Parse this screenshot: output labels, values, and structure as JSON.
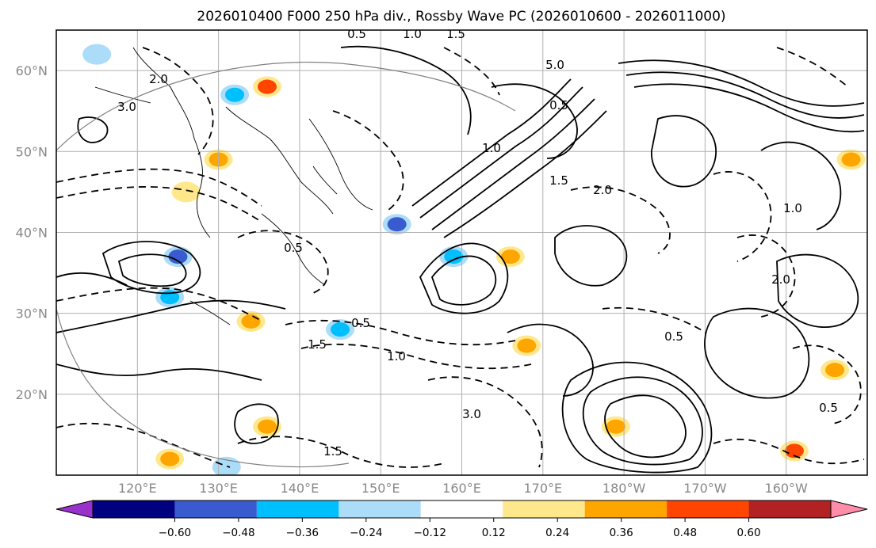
{
  "chart_data": {
    "type": "heatmap",
    "title": "2026010400 F000 250 hPa div., Rossby Wave PC (2026010600 - 2026011000)",
    "xlabel": "",
    "ylabel": "",
    "lon_range_east": [
      110,
      210
    ],
    "lat_range": [
      10,
      65
    ],
    "lat_ticks": [
      {
        "value": 20,
        "label": "20°N"
      },
      {
        "value": 30,
        "label": "30°N"
      },
      {
        "value": 40,
        "label": "40°N"
      },
      {
        "value": 50,
        "label": "50°N"
      },
      {
        "value": 60,
        "label": "60°N"
      }
    ],
    "lon_ticks": [
      {
        "value": 120,
        "label": "120°E"
      },
      {
        "value": 130,
        "label": "130°E"
      },
      {
        "value": 140,
        "label": "140°E"
      },
      {
        "value": 150,
        "label": "150°E"
      },
      {
        "value": 160,
        "label": "160°E"
      },
      {
        "value": 170,
        "label": "170°E"
      },
      {
        "value": 180,
        "label": "180°W"
      },
      {
        "value": 190,
        "label": "170°W"
      },
      {
        "value": 200,
        "label": "160°W"
      }
    ],
    "grid": true,
    "colorbar": {
      "extend": "both",
      "boundaries": [
        -0.6,
        -0.48,
        -0.36,
        -0.24,
        -0.12,
        0.12,
        0.24,
        0.36,
        0.48,
        0.6
      ],
      "tick_labels": [
        "−0.60",
        "−0.48",
        "−0.36",
        "−0.24",
        "−0.12",
        "0.12",
        "0.24",
        "0.36",
        "0.48",
        "0.60"
      ],
      "colors": [
        "#9932cc",
        "#000080",
        "#3a5bcf",
        "#00bfff",
        "#abdcf8",
        "#ffffff",
        "#ffe88c",
        "#ffa500",
        "#ff4500",
        "#b22222",
        "#ff8ca8"
      ]
    },
    "shaded_anomalies": [
      {
        "lon": 115,
        "lat": 62,
        "value": -0.24
      },
      {
        "lon": 136,
        "lat": 58,
        "value": 0.4
      },
      {
        "lon": 132,
        "lat": 57,
        "value": -0.3
      },
      {
        "lon": 130,
        "lat": 49,
        "value": 0.3
      },
      {
        "lon": 126,
        "lat": 45,
        "value": 0.2
      },
      {
        "lon": 125,
        "lat": 37,
        "value": -0.4
      },
      {
        "lon": 124,
        "lat": 32,
        "value": -0.36
      },
      {
        "lon": 152,
        "lat": 41,
        "value": -0.4
      },
      {
        "lon": 159,
        "lat": 37,
        "value": -0.36
      },
      {
        "lon": 166,
        "lat": 37,
        "value": 0.3
      },
      {
        "lon": 168,
        "lat": 26,
        "value": 0.24
      },
      {
        "lon": 145,
        "lat": 28,
        "value": -0.36
      },
      {
        "lon": 134,
        "lat": 29,
        "value": 0.24
      },
      {
        "lon": 201,
        "lat": 13,
        "value": 0.36
      },
      {
        "lon": 206,
        "lat": 23,
        "value": 0.3
      },
      {
        "lon": 208,
        "lat": 49,
        "value": 0.24
      },
      {
        "lon": 136,
        "lat": 16,
        "value": 0.3
      },
      {
        "lon": 179,
        "lat": 16,
        "value": 0.3
      },
      {
        "lon": 131,
        "lat": 11,
        "value": -0.24
      },
      {
        "lon": 124,
        "lat": 12,
        "value": 0.3
      }
    ],
    "contour_levels_labelled": [
      "0.5",
      "1.0",
      "1.5",
      "2.0",
      "3.0",
      "5.0"
    ]
  },
  "contour_labels": [
    "0.5",
    "1.0",
    "1.5",
    "2.0",
    "3.0",
    "5.0",
    "0.5",
    "1.0",
    "1.5",
    "2.0",
    "0.5",
    "1.0",
    "0.5",
    "1.5",
    "3.0",
    "0.5",
    "1.0",
    "2.0",
    "0.5",
    "1.5"
  ]
}
